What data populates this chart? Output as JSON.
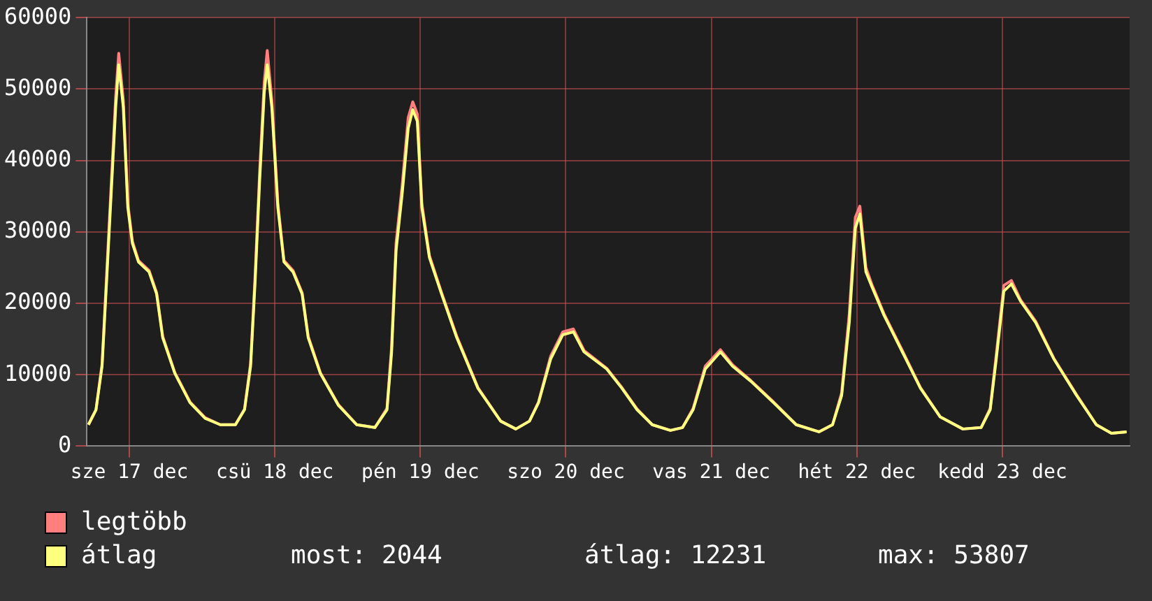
{
  "chart_data": {
    "type": "line",
    "xlim": [
      "--12-17T05:00",
      "--12-24T09:00"
    ],
    "xticks": [
      {
        "value": "--12-17T12:00",
        "label": "sze 17 dec"
      },
      {
        "value": "--12-18T12:00",
        "label": "csü 18 dec"
      },
      {
        "value": "--12-19T12:00",
        "label": "pén 19 dec"
      },
      {
        "value": "--12-20T12:00",
        "label": "szo 20 dec"
      },
      {
        "value": "--12-21T12:00",
        "label": "vas 21 dec"
      },
      {
        "value": "--12-22T12:00",
        "label": "hét 22 dec"
      },
      {
        "value": "--12-23T12:00",
        "label": "kedd 23 dec"
      }
    ],
    "ylim": [
      0,
      60000
    ],
    "yticks": [
      0,
      10000,
      20000,
      30000,
      40000,
      50000,
      60000
    ],
    "grid": true,
    "legend": "bottom",
    "marker": "none",
    "line_style": "solid",
    "x": [
      "--12-17T05:15",
      "--12-17T06:30",
      "--12-17T07:30",
      "--12-17T08:15",
      "--12-17T09:00",
      "--12-17T09:45",
      "--12-17T10:15",
      "--12-17T11:00",
      "--12-17T11:45",
      "--12-17T12:30",
      "--12-17T13:30",
      "--12-17T15:15",
      "--12-17T16:30",
      "--12-17T17:30",
      "--12-17T19:30",
      "--12-17T22:00",
      "--12-18T00:30",
      "--12-18T03:00",
      "--12-18T05:30",
      "--12-18T07:00",
      "--12-18T08:00",
      "--12-18T08:45",
      "--12-18T09:30",
      "--12-18T10:15",
      "--12-18T10:45",
      "--12-18T11:30",
      "--12-18T12:30",
      "--12-18T13:30",
      "--12-18T15:00",
      "--12-18T16:30",
      "--12-18T17:30",
      "--12-18T19:30",
      "--12-18T22:30",
      "--12-19T01:30",
      "--12-19T04:30",
      "--12-19T06:30",
      "--12-19T07:15",
      "--12-19T08:00",
      "--12-19T09:00",
      "--12-19T10:00",
      "--12-19T10:45",
      "--12-19T11:30",
      "--12-19T12:15",
      "--12-19T13:30",
      "--12-19T15:30",
      "--12-19T18:00",
      "--12-19T21:30",
      "--12-20T01:15",
      "--12-20T03:45",
      "--12-20T06:00",
      "--12-20T07:30",
      "--12-20T09:30",
      "--12-20T11:30",
      "--12-20T13:15",
      "--12-20T15:00",
      "--12-20T18:45",
      "--12-20T21:15",
      "--12-20T23:45",
      "--12-21T02:15",
      "--12-21T05:15",
      "--12-21T07:15",
      "--12-21T09:00",
      "--12-21T11:00",
      "--12-21T13:30",
      "--12-21T15:30",
      "--12-21T18:30",
      "--12-21T22:15",
      "--12-22T02:00",
      "--12-22T05:45",
      "--12-22T08:00",
      "--12-22T09:30",
      "--12-22T10:45",
      "--12-22T11:45",
      "--12-22T12:30",
      "--12-22T13:30",
      "--12-22T14:30",
      "--12-22T16:30",
      "--12-22T19:30",
      "--12-22T22:30",
      "--12-23T01:45",
      "--12-23T05:30",
      "--12-23T08:30",
      "--12-23T10:00",
      "--12-23T11:00",
      "--12-23T12:15",
      "--12-23T13:30",
      "--12-23T15:00",
      "--12-23T17:30",
      "--12-23T20:30",
      "--12-24T00:15",
      "--12-24T03:30",
      "--12-24T06:00",
      "--12-24T08:30"
    ],
    "series": [
      {
        "name": "legtöbb",
        "color": "#ff7f7f",
        "values": [
          3000,
          5100,
          11500,
          24000,
          36500,
          49000,
          55000,
          48500,
          34000,
          28700,
          26000,
          24600,
          21500,
          15400,
          10300,
          6200,
          4000,
          3000,
          3000,
          5200,
          11600,
          24000,
          38500,
          51000,
          55400,
          48500,
          34000,
          26000,
          24600,
          21500,
          15400,
          10300,
          5800,
          3000,
          2600,
          5300,
          13800,
          28500,
          36500,
          46000,
          48200,
          46500,
          34000,
          26700,
          21500,
          15400,
          8200,
          3500,
          2400,
          3500,
          6200,
          12600,
          16000,
          16400,
          13400,
          10900,
          8200,
          5200,
          3000,
          2200,
          2600,
          5300,
          11200,
          13500,
          11400,
          9200,
          6200,
          3000,
          2000,
          3000,
          7500,
          18500,
          32000,
          33600,
          25000,
          22600,
          18500,
          13400,
          8200,
          4100,
          2400,
          2600,
          5300,
          12800,
          22500,
          23200,
          20500,
          17500,
          12300,
          7200,
          3000,
          1800,
          2000
        ]
      },
      {
        "name": "átlag",
        "color": "#ffff80",
        "values": [
          3000,
          5100,
          11200,
          23100,
          35300,
          47500,
          53400,
          47500,
          33400,
          28400,
          25800,
          24400,
          21300,
          15200,
          10200,
          6100,
          3900,
          3000,
          3000,
          5100,
          11200,
          23100,
          37300,
          49500,
          53400,
          47500,
          33400,
          25800,
          24400,
          21300,
          15200,
          10200,
          5700,
          3000,
          2600,
          5100,
          13000,
          27400,
          35300,
          44500,
          47100,
          45500,
          33400,
          26400,
          21300,
          15200,
          8100,
          3500,
          2400,
          3500,
          6100,
          12200,
          15600,
          16000,
          13200,
          10800,
          8100,
          5100,
          3000,
          2200,
          2600,
          5100,
          10800,
          13200,
          11200,
          9100,
          6100,
          3000,
          2000,
          3000,
          7100,
          17300,
          30500,
          32500,
          24400,
          22300,
          18300,
          13200,
          8100,
          4100,
          2400,
          2600,
          5100,
          12200,
          21700,
          22700,
          20300,
          17300,
          12200,
          7100,
          3000,
          1800,
          2000
        ]
      }
    ],
    "annotations": [
      "most: 2044",
      "átlag: 12231",
      "max: 53807"
    ]
  }
}
